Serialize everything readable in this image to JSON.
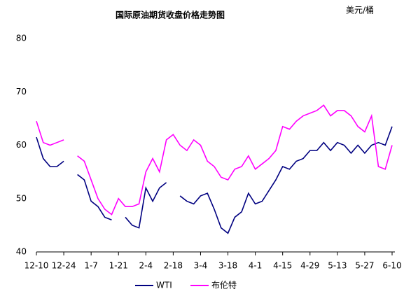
{
  "chart_data": {
    "type": "line",
    "title": "国际原油期货收盘价格走势图",
    "unit": "美元/桶",
    "categories": [
      "12-10",
      null,
      null,
      null,
      "12-24",
      null,
      null,
      null,
      "1-7",
      null,
      null,
      null,
      "1-21",
      null,
      null,
      null,
      "2-4",
      null,
      null,
      null,
      "2-18",
      null,
      null,
      null,
      "3-4",
      null,
      null,
      null,
      "3-18",
      null,
      null,
      null,
      "4-1",
      null,
      null,
      null,
      "4-15",
      null,
      null,
      null,
      "4-29",
      null,
      null,
      null,
      "5-13",
      null,
      null,
      null,
      "5-27",
      null,
      null,
      null,
      "6-10"
    ],
    "series": [
      {
        "name": "WTI",
        "color": "#000080",
        "values": [
          61.5,
          57.5,
          56,
          56,
          57,
          null,
          54.5,
          53.5,
          49.5,
          48.5,
          46.5,
          46,
          null,
          46.5,
          45,
          44.5,
          52,
          49.5,
          52,
          53,
          null,
          50.5,
          49.5,
          49,
          50.5,
          51,
          48,
          44.5,
          43.5,
          46.5,
          47.5,
          51,
          49,
          49.5,
          51.5,
          53.5,
          56,
          55.5,
          57,
          57.5,
          59,
          59,
          60.5,
          59,
          60.5,
          60,
          58.5,
          60,
          58.5,
          60,
          60.5,
          60,
          63.5
        ]
      },
      {
        "name": "布伦特",
        "color": "#ff00ff",
        "values": [
          64.5,
          60.5,
          60,
          60.5,
          61,
          null,
          58,
          57,
          53.5,
          50,
          48,
          47,
          50,
          48.5,
          48.5,
          49,
          55,
          57.5,
          55,
          61,
          62,
          60,
          59,
          61,
          60,
          57,
          56,
          54,
          53.5,
          55.5,
          56,
          58,
          55.5,
          56.5,
          57.5,
          59,
          63.5,
          63,
          64.5,
          65.5,
          66,
          66.5,
          67.5,
          65.5,
          66.5,
          66.5,
          65.5,
          63.5,
          62.5,
          65.5,
          56,
          55.5,
          60
        ]
      }
    ],
    "ylim": [
      40,
      80
    ],
    "yticks": [
      40,
      50,
      60,
      70,
      80
    ]
  }
}
